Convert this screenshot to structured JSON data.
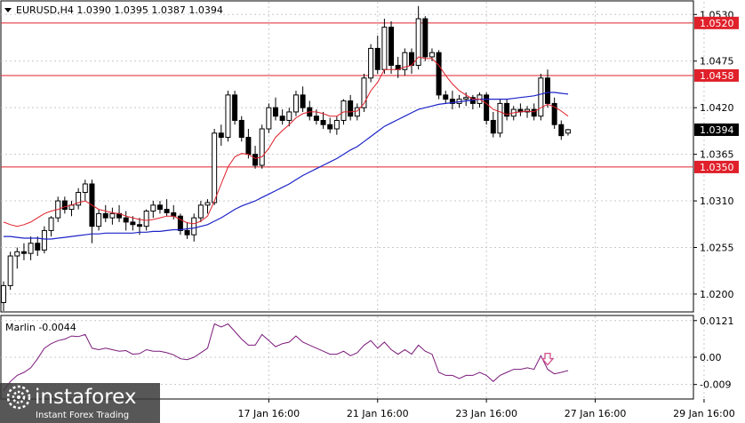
{
  "header": {
    "symbol_line": "EURUSD,H4  1.0390 1.0395 1.0387 1.0394"
  },
  "indicator": {
    "label": "Marlin -0.0044"
  },
  "watermark": {
    "brand": "instaforex",
    "tagline": "Instant Forex Trading"
  },
  "colors": {
    "background": "#ffffff",
    "frame": "#000000",
    "candle": "#000000",
    "sma_fast": "#e0202a",
    "sma_slow": "#1c23c8",
    "level": "#e0202a",
    "oscillator": "#7a1a7a",
    "arrow": "#d0508a",
    "grid": "#c8c8c8"
  },
  "chart_data": [
    {
      "type": "candlestick",
      "title": "EURUSD,H4",
      "ohlc_last": {
        "open": 1.039,
        "high": 1.0395,
        "low": 1.0387,
        "close": 1.0394
      },
      "ylim": [
        1.018,
        1.0545
      ],
      "y_ticks": [
        1.02,
        1.0255,
        1.031,
        1.0365,
        1.042,
        1.0475,
        1.053
      ],
      "y_tick_labels": [
        "1.0200",
        "1.0255",
        "1.0310",
        "1.0365",
        "1.0420",
        "1.0475",
        "1.0530"
      ],
      "x_labels": [
        {
          "index": 39,
          "text": "17 Jan 16:00"
        },
        {
          "index": 55,
          "text": "21 Jan 16:00"
        },
        {
          "index": 71,
          "text": "23 Jan 16:00"
        },
        {
          "index": 87,
          "text": "27 Jan 16:00"
        },
        {
          "index": 103,
          "text": "29 Jan 16:00"
        }
      ],
      "levels": [
        {
          "value": 1.052,
          "label": "1.0520"
        },
        {
          "value": 1.0458,
          "label": "1.0458"
        },
        {
          "value": 1.035,
          "label": "1.0350"
        }
      ],
      "current_price_label": "1.0394",
      "grid": true,
      "candles": [
        [
          1.019,
          1.0215,
          1.018,
          1.021
        ],
        [
          1.021,
          1.025,
          1.0205,
          1.0245
        ],
        [
          1.0245,
          1.0255,
          1.023,
          1.025
        ],
        [
          1.025,
          1.026,
          1.024,
          1.0248
        ],
        [
          1.0248,
          1.0268,
          1.024,
          1.026
        ],
        [
          1.026,
          1.0268,
          1.0245,
          1.0252
        ],
        [
          1.0252,
          1.028,
          1.0248,
          1.0275
        ],
        [
          1.0275,
          1.0292,
          1.0268,
          1.029
        ],
        [
          1.029,
          1.0315,
          1.0285,
          1.031
        ],
        [
          1.031,
          1.0315,
          1.0295,
          1.03
        ],
        [
          1.03,
          1.031,
          1.0292,
          1.0305
        ],
        [
          1.0305,
          1.0325,
          1.03,
          1.032
        ],
        [
          1.032,
          1.0335,
          1.031,
          1.033
        ],
        [
          1.033,
          1.0335,
          1.026,
          1.028
        ],
        [
          1.028,
          1.03,
          1.0275,
          1.0295
        ],
        [
          1.0295,
          1.0305,
          1.0285,
          1.029
        ],
        [
          1.029,
          1.0302,
          1.0282,
          1.0295
        ],
        [
          1.0295,
          1.0305,
          1.0285,
          1.029
        ],
        [
          1.029,
          1.0298,
          1.0275,
          1.0285
        ],
        [
          1.0285,
          1.0292,
          1.0275,
          1.0282
        ],
        [
          1.0282,
          1.029,
          1.027,
          1.028
        ],
        [
          1.028,
          1.03,
          1.0275,
          1.0298
        ],
        [
          1.0298,
          1.031,
          1.029,
          1.0305
        ],
        [
          1.0305,
          1.031,
          1.0295,
          1.03
        ],
        [
          1.03,
          1.0312,
          1.0292,
          1.0296
        ],
        [
          1.0296,
          1.0305,
          1.0288,
          1.0292
        ],
        [
          1.0292,
          1.0295,
          1.027,
          1.0275
        ],
        [
          1.0275,
          1.0285,
          1.0265,
          1.027
        ],
        [
          1.027,
          1.0295,
          1.0262,
          1.029
        ],
        [
          1.029,
          1.031,
          1.0285,
          1.0305
        ],
        [
          1.0305,
          1.0312,
          1.0295,
          1.0308
        ],
        [
          1.0308,
          1.0395,
          1.0305,
          1.039
        ],
        [
          1.039,
          1.04,
          1.0375,
          1.0385
        ],
        [
          1.0385,
          1.044,
          1.038,
          1.0435
        ],
        [
          1.0435,
          1.044,
          1.04,
          1.0405
        ],
        [
          1.0405,
          1.041,
          1.038,
          1.0385
        ],
        [
          1.0385,
          1.0395,
          1.036,
          1.0365
        ],
        [
          1.0365,
          1.0375,
          1.0348,
          1.0352
        ],
        [
          1.0352,
          1.04,
          1.0348,
          1.0395
        ],
        [
          1.0395,
          1.0425,
          1.039,
          1.042
        ],
        [
          1.042,
          1.0432,
          1.0405,
          1.041
        ],
        [
          1.041,
          1.0418,
          1.04,
          1.0405
        ],
        [
          1.0405,
          1.042,
          1.0398,
          1.0415
        ],
        [
          1.0415,
          1.044,
          1.041,
          1.0435
        ],
        [
          1.0435,
          1.0445,
          1.0415,
          1.042
        ],
        [
          1.042,
          1.0428,
          1.0405,
          1.041
        ],
        [
          1.041,
          1.0418,
          1.04,
          1.0405
        ],
        [
          1.0405,
          1.0415,
          1.0395,
          1.04
        ],
        [
          1.04,
          1.0408,
          1.039,
          1.0395
        ],
        [
          1.0395,
          1.041,
          1.0388,
          1.0405
        ],
        [
          1.0405,
          1.043,
          1.04,
          1.0428
        ],
        [
          1.0428,
          1.0435,
          1.0405,
          1.041
        ],
        [
          1.041,
          1.0425,
          1.0405,
          1.042
        ],
        [
          1.042,
          1.046,
          1.0415,
          1.0455
        ],
        [
          1.0455,
          1.0495,
          1.045,
          1.049
        ],
        [
          1.049,
          1.0505,
          1.046,
          1.0465
        ],
        [
          1.0465,
          1.0525,
          1.046,
          1.0515
        ],
        [
          1.0515,
          1.0522,
          1.046,
          1.047
        ],
        [
          1.047,
          1.048,
          1.0455,
          1.0465
        ],
        [
          1.0465,
          1.049,
          1.0458,
          1.0485
        ],
        [
          1.0485,
          1.049,
          1.046,
          1.047
        ],
        [
          1.047,
          1.054,
          1.0465,
          1.0525
        ],
        [
          1.0525,
          1.0528,
          1.0475,
          1.048
        ],
        [
          1.048,
          1.049,
          1.0475,
          1.0485
        ],
        [
          1.0485,
          1.0488,
          1.043,
          1.0435
        ],
        [
          1.0435,
          1.044,
          1.0425,
          1.043
        ],
        [
          1.043,
          1.044,
          1.0418,
          1.0425
        ],
        [
          1.0425,
          1.0435,
          1.042,
          1.043
        ],
        [
          1.043,
          1.0438,
          1.0422,
          1.0432
        ],
        [
          1.0432,
          1.0435,
          1.0418,
          1.0425
        ],
        [
          1.0425,
          1.0438,
          1.042,
          1.0435
        ],
        [
          1.0435,
          1.0438,
          1.04,
          1.0405
        ],
        [
          1.0405,
          1.0415,
          1.0385,
          1.039
        ],
        [
          1.039,
          1.043,
          1.0385,
          1.0425
        ],
        [
          1.0425,
          1.043,
          1.0405,
          1.041
        ],
        [
          1.041,
          1.0422,
          1.0405,
          1.0418
        ],
        [
          1.0418,
          1.0425,
          1.041,
          1.0415
        ],
        [
          1.0415,
          1.0422,
          1.0408,
          1.0418
        ],
        [
          1.0418,
          1.0425,
          1.0405,
          1.041
        ],
        [
          1.041,
          1.046,
          1.0405,
          1.0455
        ],
        [
          1.0455,
          1.0465,
          1.042,
          1.0425
        ],
        [
          1.0425,
          1.0432,
          1.0395,
          1.04
        ],
        [
          1.04,
          1.0405,
          1.0382,
          1.0387
        ],
        [
          1.039,
          1.0395,
          1.0387,
          1.0394
        ]
      ],
      "series": [
        {
          "values": [
            1.0285,
            1.0282,
            1.028,
            1.0282,
            1.0285,
            1.029,
            1.0295,
            1.0298,
            1.03,
            1.0303,
            1.0305,
            1.0308,
            1.031,
            1.0305,
            1.03,
            1.0298,
            1.0296,
            1.0295,
            1.0292,
            1.029,
            1.0288,
            1.0287,
            1.0288,
            1.029,
            1.0292,
            1.0292,
            1.0288,
            1.0284,
            1.0283,
            1.0286,
            1.0292,
            1.031,
            1.033,
            1.035,
            1.0362,
            1.0366,
            1.0365,
            1.036,
            1.0362,
            1.0372,
            1.0385,
            1.0393,
            1.04,
            1.0408,
            1.0413,
            1.0415,
            1.0415,
            1.0413,
            1.041,
            1.041,
            1.0415,
            1.0415,
            1.0416,
            1.0425,
            1.044,
            1.045,
            1.0465,
            1.0465,
            1.0465,
            1.0468,
            1.047,
            1.048,
            1.0478,
            1.0478,
            1.047,
            1.0458,
            1.0448,
            1.044,
            1.0435,
            1.043,
            1.043,
            1.0425,
            1.0418,
            1.0415,
            1.0412,
            1.0414,
            1.0415,
            1.0416,
            1.0415,
            1.042,
            1.0424,
            1.0421,
            1.0416,
            1.041
          ]
        },
        {
          "values": [
            1.0268,
            1.0268,
            1.0267,
            1.0266,
            1.0266,
            1.0266,
            1.0265,
            1.0265,
            1.0266,
            1.0267,
            1.0268,
            1.0269,
            1.027,
            1.0271,
            1.0271,
            1.0272,
            1.0272,
            1.0272,
            1.0272,
            1.0272,
            1.0273,
            1.0273,
            1.0274,
            1.0274,
            1.0275,
            1.0276,
            1.0276,
            1.0277,
            1.0278,
            1.028,
            1.0282,
            1.0286,
            1.029,
            1.0295,
            1.03,
            1.0304,
            1.0307,
            1.031,
            1.0314,
            1.0318,
            1.0322,
            1.0326,
            1.033,
            1.0335,
            1.034,
            1.0344,
            1.0348,
            1.0352,
            1.0356,
            1.036,
            1.0365,
            1.037,
            1.0374,
            1.038,
            1.0386,
            1.0392,
            1.0398,
            1.0402,
            1.0406,
            1.041,
            1.0414,
            1.0418,
            1.042,
            1.0422,
            1.0424,
            1.0425,
            1.0426,
            1.0427,
            1.0428,
            1.0429,
            1.043,
            1.043,
            1.043,
            1.043,
            1.043,
            1.0431,
            1.0432,
            1.0433,
            1.0434,
            1.0436,
            1.0438,
            1.0438,
            1.0437,
            1.0436
          ]
        }
      ]
    },
    {
      "type": "line",
      "title": "Marlin -0.0044",
      "ylim": [
        -0.0135,
        0.0135
      ],
      "y_ticks": [
        0.0121,
        0.0,
        -0.009
      ],
      "y_tick_labels": [
        "0.0121",
        "0.00",
        "-0.009"
      ],
      "grid": true,
      "series": [
        {
          "values": [
            -0.011,
            -0.008,
            -0.006,
            -0.005,
            -0.0035,
            -0.0005,
            0.003,
            0.0045,
            0.0055,
            0.006,
            0.007,
            0.0068,
            0.0075,
            0.003,
            0.0025,
            0.003,
            0.0025,
            0.002,
            0.0022,
            0.001,
            0.0012,
            0.0025,
            0.002,
            0.002,
            0.0015,
            0.0008,
            -0.0005,
            -0.0008,
            0.0,
            0.0015,
            0.003,
            0.011,
            0.01,
            0.011,
            0.0085,
            0.006,
            0.004,
            0.004,
            0.0075,
            0.0055,
            0.0035,
            0.0045,
            0.005,
            0.007,
            0.005,
            0.004,
            0.003,
            0.002,
            0.001,
            0.001,
            0.002,
            0.0005,
            0.0015,
            0.004,
            0.0055,
            0.003,
            0.005,
            0.0025,
            0.001,
            0.0025,
            0.001,
            0.004,
            0.002,
            0.001,
            -0.005,
            -0.006,
            -0.006,
            -0.007,
            -0.006,
            -0.006,
            -0.005,
            -0.006,
            -0.008,
            -0.006,
            -0.005,
            -0.004,
            -0.004,
            -0.0035,
            -0.004,
            0.0005,
            -0.004,
            -0.0055,
            -0.005,
            -0.0044
          ]
        }
      ],
      "annotations": [
        {
          "type": "arrow-down",
          "index": 80
        }
      ]
    }
  ]
}
